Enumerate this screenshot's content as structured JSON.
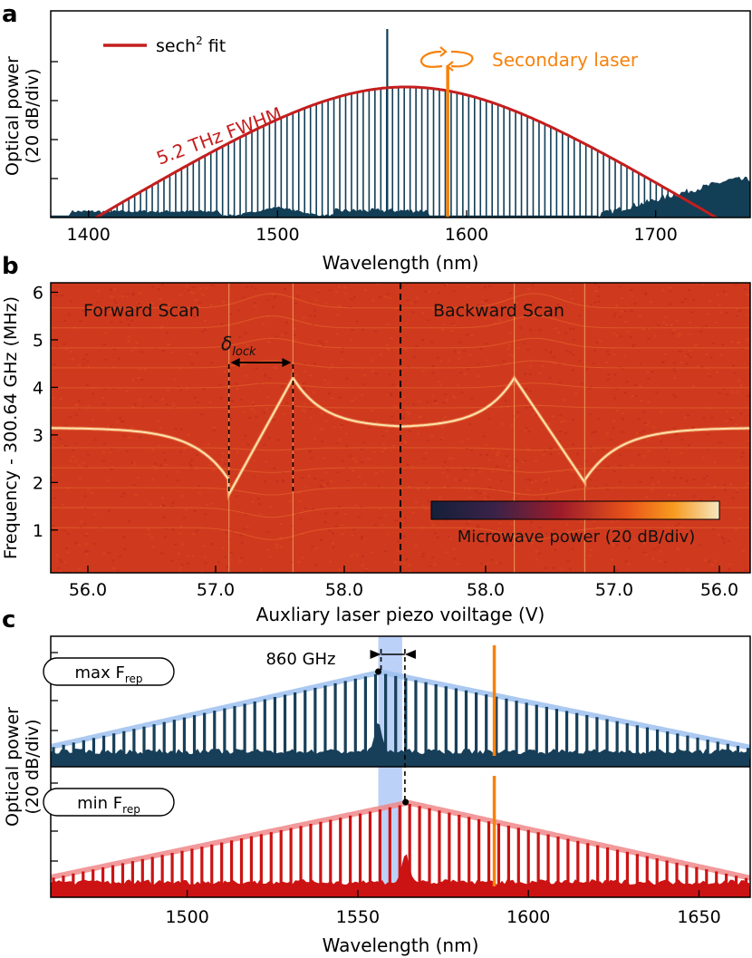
{
  "colors": {
    "comb_a": "#123e56",
    "fit": "#c41e1e",
    "secondary": "#f7820c",
    "comb_max": "#173f59",
    "comb_max_env": "#9cc0ef",
    "comb_min": "#cc1313",
    "comb_min_env": "#f0888a",
    "highlight": "#8fb3f2"
  },
  "panels": {
    "a": "a",
    "b": "b",
    "c": "c"
  },
  "chart_data": [
    {
      "id": "a",
      "type": "line",
      "xlabel": "Wavelength (nm)",
      "ylabel": [
        "Optical power",
        "(20 dB/div)"
      ],
      "xlim": [
        1380,
        1750
      ],
      "xticks": [
        1400,
        1500,
        1600,
        1700
      ],
      "ydivisions": 5,
      "yaxis_div": 20,
      "series": [
        {
          "name": "sech² fit",
          "kind": "sech2 envelope",
          "center_nm": 1568,
          "fwhm_thz": 5.2,
          "peak_level": 3.35
        },
        {
          "name": "comb lines",
          "kind": "line spectrum",
          "spacing_nm": 3.1
        },
        {
          "name": "Secondary laser",
          "kind": "single line",
          "x_nm": 1590
        },
        {
          "name": "pump",
          "kind": "single line",
          "x_nm": 1558
        }
      ],
      "legend": {
        "label_main": "sech",
        "label_sup": "2",
        "label_tail": " fit",
        "position": "top-left"
      },
      "annotations": {
        "fwhm": "5.2 THz FWHM",
        "secondary": "Secondary laser"
      }
    },
    {
      "id": "b",
      "type": "heatmap",
      "xlabel": "Auxliary laser piezo voiltage (V)",
      "ylabel": "Frequency - 300.64 GHz (MHz)",
      "ylim": [
        0.1,
        6.2
      ],
      "yticks": [
        "1",
        "2",
        "3",
        "4",
        "5",
        "6"
      ],
      "xticks": [
        "56.0",
        "57.0",
        "58.0",
        "58.0",
        "57.0",
        "56.0"
      ],
      "scan": {
        "forward": [
          56.0,
          58.5
        ],
        "backward": [
          58.5,
          56.0
        ],
        "split": 58.5
      },
      "baseline_mhz": 3.15,
      "lock_forward": {
        "start_v": 57.1,
        "end_v": 57.6,
        "freq_start": 1.75,
        "freq_end": 4.2
      },
      "lock_backward": {
        "start_v": 57.6,
        "end_v": 57.05,
        "freq_start": 4.2,
        "freq_end": 2.0
      },
      "labels": {
        "forward": "Forward Scan",
        "backward": "Backward Scan",
        "delta": "δ",
        "delta_sub": "lock"
      },
      "colorbar": {
        "label": "Microwave power (20 dB/div)",
        "colormap": "dark-blue to red to orange to light-yellow"
      }
    },
    {
      "id": "c",
      "type": "line",
      "xlabel": "Wavelength (nm)",
      "ylabel": [
        "Optical power",
        "(20 dB/div)"
      ],
      "xlim": [
        1460,
        1665
      ],
      "xticks": [
        1500,
        1550,
        1600,
        1650
      ],
      "highlight_band_nm": [
        1556,
        1563
      ],
      "spacing_annotation": {
        "text": "860 GHz",
        "x1_nm": 1556.8,
        "x2_nm": 1563.8
      },
      "series": [
        {
          "name": "max F_rep",
          "label_main": "max F",
          "label_sub": "rep",
          "spacing_nm": 2.95,
          "peak_nm": 1556,
          "secondary_nm": 1590
        },
        {
          "name": "min F_rep",
          "label_main": "min F",
          "label_sub": "rep",
          "spacing_nm": 2.9,
          "peak_nm": 1564,
          "secondary_nm": 1590
        }
      ]
    }
  ]
}
